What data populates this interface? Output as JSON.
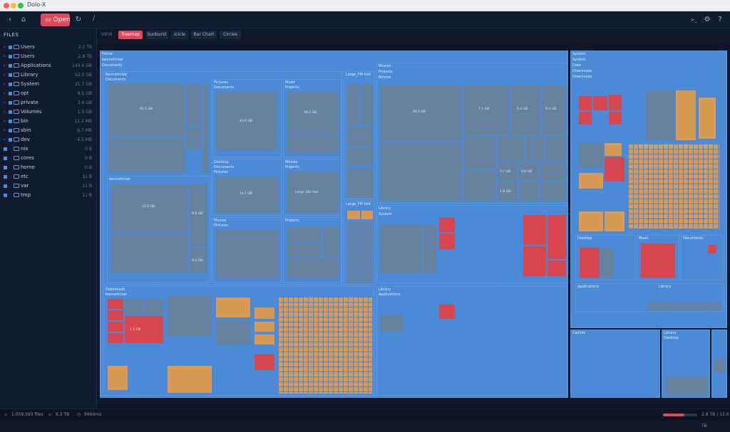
{
  "window": {
    "title": "Dolo-X"
  },
  "toolbar": {
    "open_label": "Open",
    "path": "/"
  },
  "sidebar": {
    "heading": "FILES",
    "items": [
      {
        "name": "Users",
        "size": "2.2 TB",
        "expanded": true
      },
      {
        "name": "Users",
        "size": "2.8 TB",
        "expanded": true
      },
      {
        "name": "Applications",
        "size": "144.6 GB",
        "expanded": true
      },
      {
        "name": "Library",
        "size": "52.0 GB",
        "expanded": true
      },
      {
        "name": "System",
        "size": "21.7 GB",
        "expanded": true
      },
      {
        "name": "opt",
        "size": "8.5 GB",
        "expanded": true
      },
      {
        "name": "private",
        "size": "3.6 GB",
        "expanded": true
      },
      {
        "name": "Volumes",
        "size": "1.5 GB",
        "expanded": true
      },
      {
        "name": "bin",
        "size": "11.2 MB",
        "expanded": true
      },
      {
        "name": "sbin",
        "size": "6.7 MB",
        "expanded": true
      },
      {
        "name": "dev",
        "size": "4.5 MB",
        "expanded": true
      },
      {
        "name": "nix",
        "size": "0 B",
        "expanded": false
      },
      {
        "name": "cores",
        "size": "0 B",
        "expanded": false
      },
      {
        "name": "home",
        "size": "0 B",
        "expanded": false
      },
      {
        "name": "etc",
        "size": "11 B",
        "expanded": false
      },
      {
        "name": "var",
        "size": "11 B",
        "expanded": false
      },
      {
        "name": "tmp",
        "size": "11 B",
        "expanded": false
      }
    ]
  },
  "viewbar": {
    "label": "VIEW",
    "tabs": [
      "Treemap",
      "Sunburst",
      "Icicle",
      "Bar Chart",
      "Circles"
    ],
    "active": "Treemap"
  },
  "treemap": {
    "home": "Home",
    "user": "bennettclair",
    "documents": "Documents",
    "library": "Library",
    "system": "System",
    "data": "Data",
    "desktop": "Desktop",
    "downloads": "Downloads",
    "pictures": "Pictures",
    "music": "Music",
    "projects": "Projects",
    "movies": "Movies",
    "cache": "Caches",
    "applications": "Applications",
    "large_files": "Large_FM fold",
    "large_file_size": "Large 342 fold",
    "sizes": {
      "a": "66.5 GB",
      "b": "43.6 GB",
      "c": "28.4 GB",
      "d": "14.5 GB",
      "e": "12.6 GB",
      "f": "9.8 GB",
      "g": "8.3 GB",
      "h": "7.1 GB",
      "i": "5.4 GB",
      "j": "4.4 GB",
      "k": "3.7 GB",
      "l": "2.6 GB",
      "m": "1.8 GB",
      "n": "1.5 GB"
    }
  },
  "statusbar": {
    "files": "1,059,593 files",
    "size": "6.3 TB",
    "time": "9960ms",
    "memory_fraction": 0.62,
    "right": "2.8 TB | 13.0 TB"
  },
  "colors": {
    "accent": "#e2475a",
    "folder": "#4a8ad6",
    "file": "#66829e",
    "media": "#d89a55",
    "hot": "#d6474f"
  }
}
